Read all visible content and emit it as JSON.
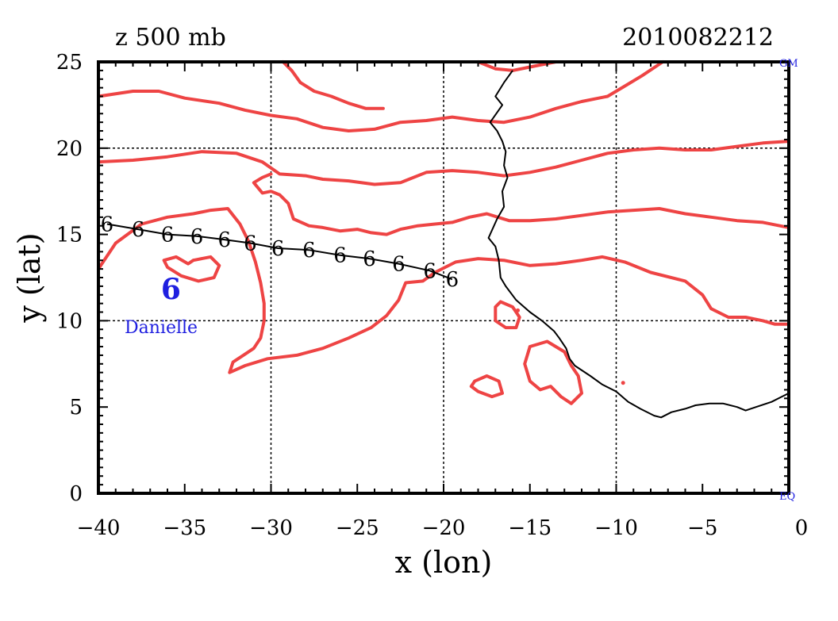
{
  "title_left": "z 500 mb",
  "title_right": "2010082212",
  "xlabel": "x (lon)",
  "ylabel": "y (lat)",
  "corner_labels": {
    "top_right": "GM",
    "bottom_right": "EQ"
  },
  "storm_label": "Danielle",
  "colors": {
    "contour": "#ee4444",
    "coast": "#000000",
    "storm": "#1f1fe0",
    "axis": "#000000"
  },
  "chart_data": {
    "type": "map",
    "xlim": [
      -40,
      0
    ],
    "ylim": [
      0,
      25
    ],
    "x_ticks": [
      -40,
      -35,
      -30,
      -25,
      -20,
      -15,
      -10,
      -5,
      0
    ],
    "y_ticks": [
      0,
      5,
      10,
      15,
      20,
      25
    ],
    "x_tick_labels": [
      "−40",
      "−35",
      "−30",
      "−25",
      "−20",
      "−15",
      "−10",
      "−5",
      "0"
    ],
    "y_tick_labels": [
      "0",
      "5",
      "10",
      "15",
      "20",
      "25"
    ],
    "grid_x": [
      -30,
      -20,
      -10
    ],
    "grid_y": [
      10,
      20
    ],
    "track_symbol": "6",
    "track": [
      [
        -39.5,
        15.6
      ],
      [
        -37.7,
        15.3
      ],
      [
        -36.0,
        15.0
      ],
      [
        -34.3,
        14.9
      ],
      [
        -32.7,
        14.7
      ],
      [
        -31.2,
        14.5
      ],
      [
        -29.6,
        14.2
      ],
      [
        -27.8,
        14.1
      ],
      [
        -26.0,
        13.8
      ],
      [
        -24.3,
        13.6
      ],
      [
        -22.6,
        13.3
      ],
      [
        -20.8,
        12.9
      ],
      [
        -19.5,
        12.4
      ]
    ],
    "storm_position": [
      -35.8,
      11.8
    ],
    "coastline": [
      [
        -16.0,
        24.5
      ],
      [
        -16.5,
        23.8
      ],
      [
        -17.0,
        23.0
      ],
      [
        -16.6,
        22.5
      ],
      [
        -17.3,
        21.5
      ],
      [
        -16.9,
        21.0
      ],
      [
        -16.6,
        20.4
      ],
      [
        -16.4,
        19.8
      ],
      [
        -16.5,
        19.0
      ],
      [
        -16.3,
        18.3
      ],
      [
        -16.6,
        17.5
      ],
      [
        -16.5,
        16.6
      ],
      [
        -16.9,
        15.9
      ],
      [
        -17.4,
        14.8
      ],
      [
        -17.0,
        14.3
      ],
      [
        -16.8,
        13.5
      ],
      [
        -16.7,
        12.5
      ],
      [
        -16.4,
        12.0
      ],
      [
        -15.8,
        11.2
      ],
      [
        -15.0,
        10.5
      ],
      [
        -14.3,
        10.0
      ],
      [
        -13.6,
        9.4
      ],
      [
        -13.3,
        9.0
      ],
      [
        -12.9,
        8.4
      ],
      [
        -12.7,
        7.8
      ],
      [
        -12.4,
        7.4
      ],
      [
        -11.5,
        6.8
      ],
      [
        -10.8,
        6.3
      ],
      [
        -10.0,
        5.9
      ],
      [
        -9.3,
        5.3
      ],
      [
        -8.6,
        4.9
      ],
      [
        -7.8,
        4.5
      ],
      [
        -7.4,
        4.4
      ],
      [
        -6.8,
        4.7
      ],
      [
        -6.0,
        4.9
      ],
      [
        -5.4,
        5.1
      ],
      [
        -4.6,
        5.2
      ],
      [
        -3.8,
        5.2
      ],
      [
        -3.0,
        5.0
      ],
      [
        -2.5,
        4.8
      ],
      [
        -1.9,
        5.0
      ],
      [
        -1.0,
        5.3
      ],
      [
        -0.4,
        5.6
      ],
      [
        0.0,
        5.8
      ]
    ],
    "contours": [
      [
        [
          -40,
          23.0
        ],
        [
          -38,
          23.3
        ],
        [
          -36.5,
          23.3
        ],
        [
          -35,
          22.9
        ],
        [
          -33,
          22.6
        ],
        [
          -31.5,
          22.2
        ],
        [
          -30,
          21.9
        ],
        [
          -28.5,
          21.7
        ],
        [
          -27,
          21.2
        ],
        [
          -25.5,
          21.0
        ],
        [
          -24,
          21.1
        ],
        [
          -22.5,
          21.5
        ],
        [
          -21,
          21.6
        ],
        [
          -19.5,
          21.8
        ],
        [
          -18,
          21.6
        ],
        [
          -16.5,
          21.5
        ],
        [
          -15,
          21.8
        ],
        [
          -13.5,
          22.3
        ],
        [
          -12,
          22.7
        ],
        [
          -10.5,
          23.0
        ],
        [
          -9.5,
          23.6
        ],
        [
          -8.5,
          24.2
        ],
        [
          -7.3,
          25.0
        ]
      ],
      [
        [
          -40,
          19.2
        ],
        [
          -38,
          19.3
        ],
        [
          -36,
          19.5
        ],
        [
          -34,
          19.8
        ],
        [
          -32,
          19.7
        ],
        [
          -30.5,
          19.2
        ],
        [
          -29.5,
          18.5
        ],
        [
          -28,
          18.4
        ],
        [
          -27,
          18.2
        ],
        [
          -25.5,
          18.1
        ],
        [
          -24,
          17.9
        ],
        [
          -22.5,
          18.0
        ],
        [
          -21,
          18.6
        ],
        [
          -19.5,
          18.7
        ],
        [
          -18,
          18.6
        ],
        [
          -16.5,
          18.4
        ],
        [
          -15,
          18.6
        ],
        [
          -13.5,
          18.9
        ],
        [
          -12,
          19.3
        ],
        [
          -10.5,
          19.7
        ],
        [
          -9,
          19.9
        ],
        [
          -7.5,
          20.0
        ],
        [
          -6,
          19.9
        ],
        [
          -4.5,
          19.9
        ],
        [
          -3,
          20.1
        ],
        [
          -1.5,
          20.3
        ],
        [
          0,
          20.4
        ]
      ],
      [
        [
          -30.0,
          18.5
        ],
        [
          -30.5,
          18.3
        ],
        [
          -31.0,
          18.0
        ],
        [
          -30.5,
          17.4
        ],
        [
          -30.0,
          17.5
        ],
        [
          -29.5,
          17.3
        ],
        [
          -29.0,
          16.8
        ],
        [
          -28.7,
          15.9
        ],
        [
          -27.8,
          15.5
        ],
        [
          -27.0,
          15.4
        ],
        [
          -26.0,
          15.2
        ],
        [
          -25.0,
          15.3
        ],
        [
          -24.2,
          15.1
        ],
        [
          -23.3,
          15.0
        ],
        [
          -22.5,
          15.3
        ],
        [
          -21.5,
          15.5
        ],
        [
          -20.5,
          15.6
        ],
        [
          -19.5,
          15.7
        ],
        [
          -18.5,
          16.0
        ],
        [
          -17.5,
          16.2
        ],
        [
          -16.2,
          15.8
        ],
        [
          -15.0,
          15.8
        ],
        [
          -13.5,
          15.9
        ],
        [
          -12.0,
          16.1
        ],
        [
          -10.5,
          16.3
        ],
        [
          -9.0,
          16.4
        ],
        [
          -7.5,
          16.5
        ],
        [
          -6.0,
          16.2
        ],
        [
          -4.5,
          16.0
        ],
        [
          -3.0,
          15.8
        ],
        [
          -1.5,
          15.7
        ],
        [
          0,
          15.4
        ]
      ],
      [
        [
          -40,
          13.0
        ],
        [
          -39,
          14.5
        ],
        [
          -37.5,
          15.6
        ],
        [
          -36,
          16.0
        ],
        [
          -34.5,
          16.2
        ],
        [
          -33.5,
          16.4
        ],
        [
          -32.5,
          16.5
        ],
        [
          -31.8,
          15.6
        ],
        [
          -31.3,
          14.6
        ],
        [
          -30.9,
          13.4
        ],
        [
          -30.6,
          12.2
        ],
        [
          -30.4,
          11.0
        ],
        [
          -30.4,
          10.0
        ],
        [
          -30.6,
          9.0
        ],
        [
          -31.0,
          8.4
        ],
        [
          -31.6,
          8.0
        ],
        [
          -32.2,
          7.6
        ],
        [
          -32.4,
          7.0
        ],
        [
          -31.5,
          7.4
        ],
        [
          -30.2,
          7.8
        ],
        [
          -28.5,
          8.0
        ],
        [
          -27.0,
          8.4
        ],
        [
          -25.5,
          9.0
        ],
        [
          -24.2,
          9.6
        ],
        [
          -23.3,
          10.3
        ],
        [
          -22.6,
          11.2
        ],
        [
          -22.2,
          12.2
        ],
        [
          -21.2,
          12.3
        ],
        [
          -20.5,
          12.8
        ],
        [
          -19.3,
          13.4
        ],
        [
          -18.0,
          13.6
        ],
        [
          -16.5,
          13.5
        ],
        [
          -15.0,
          13.2
        ],
        [
          -13.5,
          13.3
        ],
        [
          -12.0,
          13.5
        ],
        [
          -10.8,
          13.7
        ],
        [
          -9.5,
          13.4
        ],
        [
          -8.0,
          12.8
        ],
        [
          -6.0,
          12.3
        ],
        [
          -5.0,
          11.5
        ],
        [
          -4.5,
          10.7
        ],
        [
          -3.5,
          10.2
        ],
        [
          -2.5,
          10.2
        ],
        [
          -1.5,
          10.0
        ],
        [
          -0.8,
          9.8
        ],
        [
          0,
          9.8
        ]
      ],
      [
        [
          -34.5,
          13.5
        ],
        [
          -33.5,
          13.7
        ],
        [
          -33.0,
          13.2
        ],
        [
          -33.3,
          12.5
        ],
        [
          -34.2,
          12.3
        ],
        [
          -35.2,
          12.6
        ],
        [
          -36.0,
          13.1
        ],
        [
          -36.2,
          13.5
        ],
        [
          -35.5,
          13.7
        ],
        [
          -34.8,
          13.3
        ],
        [
          -34.5,
          13.5
        ]
      ],
      [
        [
          -16.7,
          11.1
        ],
        [
          -16.0,
          10.8
        ],
        [
          -15.6,
          10.2
        ],
        [
          -15.8,
          9.6
        ],
        [
          -16.4,
          9.6
        ],
        [
          -17.0,
          10.0
        ],
        [
          -17.0,
          10.8
        ],
        [
          -16.7,
          11.1
        ]
      ],
      [
        [
          -15.0,
          8.5
        ],
        [
          -14.0,
          8.8
        ],
        [
          -13.0,
          8.2
        ],
        [
          -12.6,
          7.4
        ],
        [
          -12.2,
          6.8
        ],
        [
          -12.0,
          5.8
        ],
        [
          -12.6,
          5.2
        ],
        [
          -13.2,
          5.6
        ],
        [
          -13.8,
          6.2
        ],
        [
          -14.4,
          6.0
        ],
        [
          -15.0,
          6.5
        ],
        [
          -15.3,
          7.5
        ],
        [
          -15.0,
          8.5
        ]
      ],
      [
        [
          -18.2,
          6.5
        ],
        [
          -17.5,
          6.8
        ],
        [
          -16.8,
          6.5
        ],
        [
          -16.6,
          5.8
        ],
        [
          -17.2,
          5.6
        ],
        [
          -18.0,
          5.9
        ],
        [
          -18.4,
          6.2
        ],
        [
          -18.2,
          6.5
        ]
      ],
      [
        [
          -18.0,
          25.0
        ],
        [
          -17.0,
          24.6
        ],
        [
          -16.0,
          24.5
        ],
        [
          -15.0,
          24.7
        ],
        [
          -13.5,
          25.0
        ]
      ],
      [
        [
          -29.3,
          25.0
        ],
        [
          -28.8,
          24.5
        ],
        [
          -28.3,
          23.8
        ],
        [
          -27.5,
          23.3
        ],
        [
          -26.5,
          23.0
        ],
        [
          -25.5,
          22.6
        ],
        [
          -24.5,
          22.3
        ],
        [
          -23.5,
          22.3
        ]
      ]
    ],
    "dots": [
      [
        -9.6,
        6.4
      ],
      [
        -15.7,
        10.6
      ]
    ]
  }
}
